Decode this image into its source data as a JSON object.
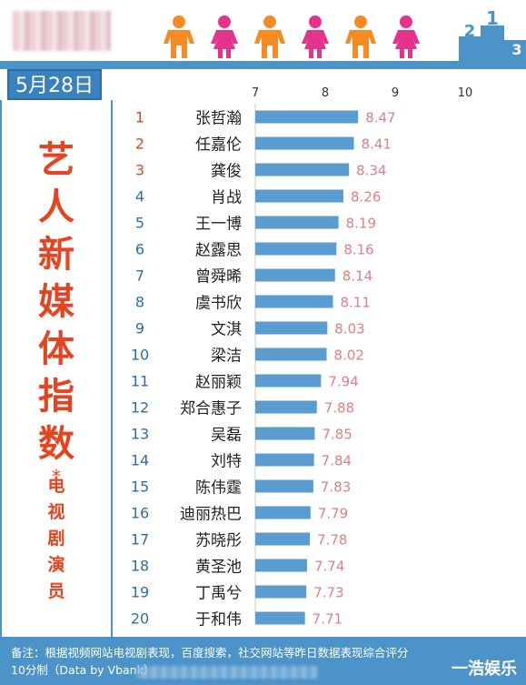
{
  "header": {
    "date": "5月28日",
    "podium_digits": [
      "2",
      "1",
      "3"
    ]
  },
  "side": {
    "title_chars": [
      "艺",
      "人",
      "新",
      "媒",
      "体",
      "指",
      "数"
    ],
    "star": "*",
    "sub_chars": [
      "电",
      "视",
      "剧",
      "演",
      "员"
    ]
  },
  "footer": {
    "note_line1": "备注：根据视频网站电视剧表现，百度搜索，社交网站等昨日数据表现综合评分",
    "note_line2": "10分制（Data by Vbank）",
    "brand": "一浩娱乐"
  },
  "colors": {
    "bar": "#5a9bd0",
    "rank_top3": "#e6431f",
    "rank_other": "#2c6fa6",
    "value": "#e07f80",
    "header_blue": "#4b93c9",
    "person_orange": "#f58b22",
    "person_pink": "#e5338b"
  },
  "chart_data": {
    "type": "bar",
    "orientation": "horizontal",
    "xlim": [
      7,
      10
    ],
    "xticks": [
      7,
      8,
      9,
      10
    ],
    "ranks": [
      1,
      2,
      3,
      4,
      5,
      6,
      7,
      8,
      9,
      10,
      11,
      12,
      13,
      14,
      15,
      16,
      17,
      18,
      19,
      20
    ],
    "categories": [
      "张哲瀚",
      "任嘉伦",
      "龚俊",
      "肖战",
      "王一博",
      "赵露思",
      "曾舜晞",
      "虞书欣",
      "文淇",
      "梁洁",
      "赵丽颖",
      "郑合惠子",
      "吴磊",
      "刘特",
      "陈伟霆",
      "迪丽热巴",
      "苏晓彤",
      "黄圣池",
      "丁禹兮",
      "于和伟"
    ],
    "values": [
      8.47,
      8.41,
      8.34,
      8.26,
      8.19,
      8.16,
      8.14,
      8.11,
      8.03,
      8.02,
      7.94,
      7.88,
      7.85,
      7.84,
      7.83,
      7.79,
      7.78,
      7.74,
      7.73,
      7.71
    ],
    "value_labels": [
      "8.47",
      "8.41",
      "8.34",
      "8.26",
      "8.19",
      "8.16",
      "8.14",
      "8.11",
      "8.03",
      "8.02",
      "7.94",
      "7.88",
      "7.85",
      "7.84",
      "7.83",
      "7.79",
      "7.78",
      "7.74",
      "7.73",
      "7.71"
    ],
    "grid": false
  }
}
